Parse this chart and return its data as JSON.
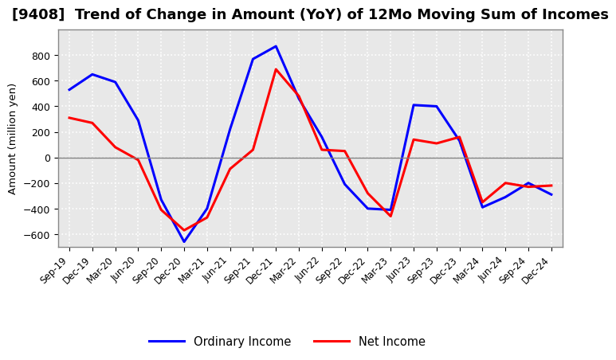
{
  "title": "[9408]  Trend of Change in Amount (YoY) of 12Mo Moving Sum of Incomes",
  "ylabel": "Amount (million yen)",
  "x_labels": [
    "Sep-19",
    "Dec-19",
    "Mar-20",
    "Jun-20",
    "Sep-20",
    "Dec-20",
    "Mar-21",
    "Jun-21",
    "Sep-21",
    "Dec-21",
    "Mar-22",
    "Jun-22",
    "Sep-22",
    "Dec-22",
    "Mar-23",
    "Jun-23",
    "Sep-23",
    "Dec-23",
    "Mar-24",
    "Jun-24",
    "Sep-24",
    "Dec-24"
  ],
  "ordinary_income": [
    530,
    650,
    590,
    290,
    -330,
    -660,
    -400,
    220,
    770,
    870,
    460,
    160,
    -210,
    -400,
    -410,
    410,
    400,
    130,
    -390,
    -310,
    -200,
    -290
  ],
  "net_income": [
    310,
    270,
    80,
    -20,
    -410,
    -570,
    -470,
    -90,
    60,
    690,
    480,
    60,
    50,
    -280,
    -460,
    140,
    110,
    160,
    -350,
    -200,
    -230,
    -220
  ],
  "ordinary_color": "#0000ff",
  "net_color": "#ff0000",
  "ylim": [
    -700,
    1000
  ],
  "yticks": [
    -600,
    -400,
    -200,
    0,
    200,
    400,
    600,
    800
  ],
  "plot_bg_color": "#e8e8e8",
  "figure_bg_color": "#ffffff",
  "grid_color": "#ffffff",
  "zero_line_color": "#808080",
  "legend_labels": [
    "Ordinary Income",
    "Net Income"
  ]
}
